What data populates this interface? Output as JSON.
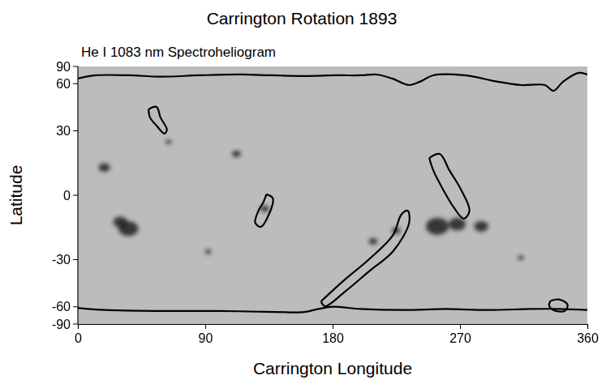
{
  "chart_data": {
    "type": "synoptic_map",
    "title": "Carrington Rotation 1893",
    "subtitle": "He I 1083 nm Spectroheliogram",
    "x_label": "Carrington Longitude",
    "y_label": "Latitude",
    "xlim": [
      0,
      360
    ],
    "ylim": [
      -90,
      90
    ],
    "xticks": [
      0,
      90,
      180,
      270,
      360
    ],
    "yticks": [
      -90,
      -60,
      -30,
      0,
      30,
      60,
      90
    ],
    "series": [
      {
        "type": "scatter",
        "marker": "blob",
        "color": "#1e1e1e",
        "x": [
          35.7,
          30,
          18.7,
          112,
          132,
          254,
          268,
          285,
          208.6,
          92,
          313,
          64,
          225
        ],
        "values": [
          -15,
          -12,
          12.4,
          18.7,
          -6,
          -14,
          -13,
          -14,
          -21,
          -26,
          -29,
          24.5,
          -16
        ],
        "sizes": [
          7,
          5,
          4,
          3,
          3,
          8,
          6,
          5,
          3,
          2,
          2,
          2,
          3
        ]
      },
      {
        "type": "line",
        "color": "#000000",
        "x": [
          0,
          13,
          36,
          58,
          86,
          115,
          137,
          160,
          183,
          200,
          211,
          222,
          234,
          242,
          251,
          273,
          296,
          313,
          330,
          336,
          343,
          354,
          360
        ],
        "values": [
          65,
          68.6,
          68.6,
          67,
          68.6,
          69.6,
          68.6,
          67.8,
          68.6,
          68.6,
          69.6,
          65,
          58.8,
          62,
          68.6,
          68.6,
          62,
          58.8,
          58.8,
          54.2,
          62,
          71.8,
          69.6
        ]
      },
      {
        "type": "line",
        "color": "#000000",
        "x": [
          0,
          20,
          60,
          100,
          140,
          160,
          170,
          180,
          200,
          230,
          260,
          290,
          320,
          340,
          360
        ],
        "values": [
          -61,
          -63,
          -64,
          -64,
          -65,
          -65,
          -62,
          -60,
          -62,
          -63,
          -62,
          -63,
          -62,
          -62,
          -63
        ]
      },
      {
        "type": "line",
        "color": "#000000",
        "x": [
          171.8,
          188.8,
          205.8,
          222.8,
          228.5,
          233,
          234.1,
          222.8,
          205.8,
          188.8,
          174.6,
          171.8
        ],
        "values": [
          -55.5,
          -40.8,
          -29.8,
          -17.9,
          -8.7,
          -6.9,
          -12.3,
          -25.7,
          -36.2,
          -48.4,
          -59.5,
          -55.5
        ]
      },
      {
        "type": "line",
        "color": "#000000",
        "x": [
          248.3,
          255.7,
          262.5,
          271,
          276.7,
          272.7,
          265.3,
          256.8,
          251.1,
          248.3
        ],
        "values": [
          16.8,
          18.7,
          11.2,
          2.2,
          -6.9,
          -10.5,
          -5.1,
          4,
          11.2,
          16.8
        ]
      },
      {
        "type": "line",
        "color": "#000000",
        "x": [
          49.9,
          55.6,
          58.4,
          62.9,
          61.2,
          55.6,
          51,
          49.9
        ],
        "values": [
          41.8,
          43.3,
          37.1,
          30.6,
          28.6,
          32.7,
          37.1,
          41.8
        ]
      },
      {
        "type": "line",
        "color": "#000000",
        "x": [
          133.2,
          137.8,
          134.9,
          129.3,
          125.3,
          127.6,
          131,
          133.2
        ],
        "values": [
          0.4,
          -1.4,
          -8.7,
          -14.2,
          -12.3,
          -6.9,
          -3.2,
          0.4
        ]
      },
      {
        "type": "line",
        "color": "#000000",
        "x": [
          334,
          340,
          346,
          344,
          336,
          333,
          334
        ],
        "values": [
          -55,
          -54,
          -58,
          -64,
          -63,
          -59,
          -55
        ]
      }
    ]
  }
}
